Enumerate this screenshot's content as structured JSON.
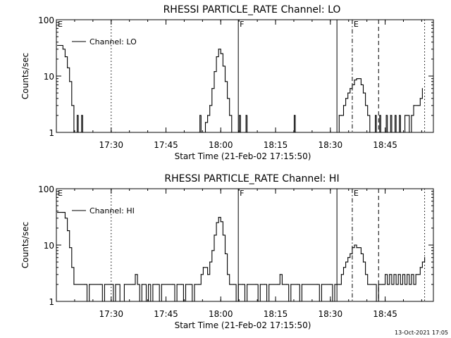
{
  "chart_data": [
    {
      "type": "line",
      "title": "RHESSI PARTICLE_RATE Channel: LO",
      "ylabel": "Counts/sec",
      "xlabel": "Start Time (21-Feb-02 17:15:50)",
      "y_scale": "log",
      "ylim": [
        1,
        100
      ],
      "y_ticks": [
        {
          "value": 1,
          "label": "1"
        },
        {
          "value": 10,
          "label": "10"
        },
        {
          "value": 100,
          "label": "100"
        }
      ],
      "xlim_minutes": [
        17.25,
        18.97
      ],
      "x_ticks": [
        {
          "value": 17.5,
          "label": "17:30"
        },
        {
          "value": 17.75,
          "label": "17:45"
        },
        {
          "value": 18.0,
          "label": "18:00"
        },
        {
          "value": 18.25,
          "label": "18:15"
        },
        {
          "value": 18.5,
          "label": "18:30"
        },
        {
          "value": 18.75,
          "label": "18:45"
        }
      ],
      "legend": {
        "label": "Channel: LO",
        "position": "top-left"
      },
      "markers": [
        {
          "x": 17.25,
          "style": "solid",
          "label": "E"
        },
        {
          "x": 17.5,
          "style": "dotted",
          "label": ""
        },
        {
          "x": 18.08,
          "style": "solid",
          "label": "F"
        },
        {
          "x": 18.53,
          "style": "solid",
          "label": ""
        },
        {
          "x": 18.6,
          "style": "dashdot",
          "label": "E"
        },
        {
          "x": 18.72,
          "style": "dashed",
          "label": ""
        },
        {
          "x": 18.93,
          "style": "dotted",
          "label": ""
        }
      ],
      "series": [
        {
          "name": "Channel: LO",
          "points": [
            [
              17.255,
              35
            ],
            [
              17.27,
              35
            ],
            [
              17.28,
              30
            ],
            [
              17.29,
              22
            ],
            [
              17.3,
              14
            ],
            [
              17.31,
              8
            ],
            [
              17.32,
              3
            ],
            [
              17.33,
              1
            ],
            [
              17.34,
              1
            ],
            [
              17.345,
              2
            ],
            [
              17.35,
              1
            ],
            [
              17.36,
              1
            ],
            [
              17.365,
              2
            ],
            [
              17.37,
              1
            ],
            [
              17.52,
              1
            ],
            [
              17.9,
              1
            ],
            [
              17.905,
              2
            ],
            [
              17.91,
              1
            ],
            [
              17.92,
              1
            ],
            [
              17.93,
              1.5
            ],
            [
              17.94,
              2
            ],
            [
              17.95,
              3
            ],
            [
              17.96,
              6
            ],
            [
              17.97,
              12
            ],
            [
              17.98,
              22
            ],
            [
              17.99,
              30
            ],
            [
              18.0,
              25
            ],
            [
              18.01,
              15
            ],
            [
              18.02,
              8
            ],
            [
              18.03,
              4
            ],
            [
              18.04,
              2
            ],
            [
              18.05,
              1
            ],
            [
              18.08,
              1
            ],
            [
              18.085,
              2
            ],
            [
              18.09,
              1
            ],
            [
              18.11,
              1
            ],
            [
              18.115,
              2
            ],
            [
              18.12,
              1
            ],
            [
              18.33,
              1
            ],
            [
              18.335,
              2
            ],
            [
              18.34,
              1
            ],
            [
              18.53,
              1
            ],
            [
              18.54,
              2
            ],
            [
              18.55,
              2
            ],
            [
              18.56,
              3
            ],
            [
              18.57,
              4
            ],
            [
              18.58,
              5
            ],
            [
              18.59,
              6
            ],
            [
              18.6,
              7
            ],
            [
              18.61,
              8.5
            ],
            [
              18.62,
              9
            ],
            [
              18.63,
              9
            ],
            [
              18.64,
              7
            ],
            [
              18.65,
              5
            ],
            [
              18.66,
              3
            ],
            [
              18.67,
              2
            ],
            [
              18.68,
              1
            ],
            [
              18.7,
              1
            ],
            [
              18.705,
              2
            ],
            [
              18.71,
              1
            ],
            [
              18.72,
              1
            ],
            [
              18.725,
              2
            ],
            [
              18.73,
              1
            ],
            [
              18.75,
              1
            ],
            [
              18.755,
              2
            ],
            [
              18.76,
              1
            ],
            [
              18.775,
              2
            ],
            [
              18.78,
              1
            ],
            [
              18.795,
              2
            ],
            [
              18.8,
              1
            ],
            [
              18.815,
              2
            ],
            [
              18.82,
              1
            ],
            [
              18.84,
              2
            ],
            [
              18.85,
              2
            ],
            [
              18.86,
              1
            ],
            [
              18.87,
              2
            ],
            [
              18.88,
              3
            ],
            [
              18.9,
              3
            ],
            [
              18.91,
              4
            ],
            [
              18.92,
              6
            ]
          ]
        }
      ]
    },
    {
      "type": "line",
      "title": "RHESSI PARTICLE_RATE Channel: HI",
      "ylabel": "Counts/sec",
      "xlabel": "Start Time (21-Feb-02 17:15:50)",
      "y_scale": "log",
      "ylim": [
        1,
        100
      ],
      "y_ticks": [
        {
          "value": 1,
          "label": "1"
        },
        {
          "value": 10,
          "label": "10"
        },
        {
          "value": 100,
          "label": "100"
        }
      ],
      "xlim_minutes": [
        17.25,
        18.97
      ],
      "x_ticks": [
        {
          "value": 17.5,
          "label": "17:30"
        },
        {
          "value": 17.75,
          "label": "17:45"
        },
        {
          "value": 18.0,
          "label": "18:00"
        },
        {
          "value": 18.25,
          "label": "18:15"
        },
        {
          "value": 18.5,
          "label": "18:30"
        },
        {
          "value": 18.75,
          "label": "18:45"
        }
      ],
      "legend": {
        "label": "Channel: HI",
        "position": "top-left"
      },
      "markers": [
        {
          "x": 17.25,
          "style": "solid",
          "label": "E"
        },
        {
          "x": 17.5,
          "style": "dotted",
          "label": ""
        },
        {
          "x": 18.08,
          "style": "solid",
          "label": "F"
        },
        {
          "x": 18.53,
          "style": "solid",
          "label": ""
        },
        {
          "x": 18.6,
          "style": "dashdot",
          "label": "E"
        },
        {
          "x": 18.72,
          "style": "dashed",
          "label": ""
        },
        {
          "x": 18.93,
          "style": "dotted",
          "label": ""
        }
      ],
      "series": [
        {
          "name": "Channel: HI",
          "points": [
            [
              17.255,
              38
            ],
            [
              17.28,
              38
            ],
            [
              17.29,
              30
            ],
            [
              17.3,
              18
            ],
            [
              17.31,
              9
            ],
            [
              17.32,
              4
            ],
            [
              17.33,
              2
            ],
            [
              17.38,
              2
            ],
            [
              17.39,
              1
            ],
            [
              17.4,
              2
            ],
            [
              17.45,
              2
            ],
            [
              17.46,
              1
            ],
            [
              17.47,
              2
            ],
            [
              17.5,
              2
            ],
            [
              17.51,
              1
            ],
            [
              17.52,
              2
            ],
            [
              17.53,
              2
            ],
            [
              17.54,
              1
            ],
            [
              17.55,
              1
            ],
            [
              17.56,
              2
            ],
            [
              17.6,
              2
            ],
            [
              17.61,
              3
            ],
            [
              17.62,
              2
            ],
            [
              17.63,
              1
            ],
            [
              17.64,
              2
            ],
            [
              17.66,
              1
            ],
            [
              17.67,
              2
            ],
            [
              17.68,
              1
            ],
            [
              17.69,
              2
            ],
            [
              17.71,
              2
            ],
            [
              17.72,
              1
            ],
            [
              17.73,
              2
            ],
            [
              17.78,
              2
            ],
            [
              17.79,
              1
            ],
            [
              17.8,
              2
            ],
            [
              17.82,
              2
            ],
            [
              17.83,
              1
            ],
            [
              17.84,
              2
            ],
            [
              17.86,
              2
            ],
            [
              17.87,
              1
            ],
            [
              17.88,
              2
            ],
            [
              17.9,
              2
            ],
            [
              17.91,
              3
            ],
            [
              17.92,
              4
            ],
            [
              17.94,
              3
            ],
            [
              17.95,
              5
            ],
            [
              17.96,
              8
            ],
            [
              17.97,
              15
            ],
            [
              17.98,
              25
            ],
            [
              17.99,
              31
            ],
            [
              18.0,
              26
            ],
            [
              18.01,
              15
            ],
            [
              18.02,
              7
            ],
            [
              18.03,
              3
            ],
            [
              18.04,
              2
            ],
            [
              18.06,
              2
            ],
            [
              18.07,
              1
            ],
            [
              18.08,
              2
            ],
            [
              18.1,
              2
            ],
            [
              18.11,
              1
            ],
            [
              18.12,
              2
            ],
            [
              18.16,
              2
            ],
            [
              18.17,
              1
            ],
            [
              18.18,
              2
            ],
            [
              18.2,
              2
            ],
            [
              18.21,
              1
            ],
            [
              18.22,
              2
            ],
            [
              18.26,
              2
            ],
            [
              18.27,
              3
            ],
            [
              18.28,
              2
            ],
            [
              18.3,
              2
            ],
            [
              18.31,
              1
            ],
            [
              18.32,
              2
            ],
            [
              18.35,
              2
            ],
            [
              18.36,
              1
            ],
            [
              18.37,
              2
            ],
            [
              18.44,
              2
            ],
            [
              18.45,
              1
            ],
            [
              18.46,
              2
            ],
            [
              18.5,
              2
            ],
            [
              18.51,
              1
            ],
            [
              18.52,
              2
            ],
            [
              18.54,
              2
            ],
            [
              18.55,
              3
            ],
            [
              18.56,
              4
            ],
            [
              18.57,
              5
            ],
            [
              18.58,
              6
            ],
            [
              18.59,
              7
            ],
            [
              18.6,
              9
            ],
            [
              18.61,
              10
            ],
            [
              18.62,
              9
            ],
            [
              18.63,
              9
            ],
            [
              18.64,
              7
            ],
            [
              18.65,
              5
            ],
            [
              18.66,
              3
            ],
            [
              18.67,
              2
            ],
            [
              18.7,
              2
            ],
            [
              18.71,
              1
            ],
            [
              18.72,
              2
            ],
            [
              18.74,
              2
            ],
            [
              18.75,
              3
            ],
            [
              18.76,
              2
            ],
            [
              18.77,
              3
            ],
            [
              18.78,
              2
            ],
            [
              18.79,
              3
            ],
            [
              18.8,
              2
            ],
            [
              18.81,
              3
            ],
            [
              18.82,
              2
            ],
            [
              18.83,
              3
            ],
            [
              18.84,
              2
            ],
            [
              18.85,
              3
            ],
            [
              18.86,
              2
            ],
            [
              18.87,
              3
            ],
            [
              18.88,
              2
            ],
            [
              18.89,
              3
            ],
            [
              18.9,
              3
            ],
            [
              18.91,
              4
            ],
            [
              18.92,
              5
            ],
            [
              18.93,
              6
            ]
          ]
        }
      ]
    }
  ],
  "footer": {
    "timestamp": "13-Oct-2021 17:05"
  }
}
